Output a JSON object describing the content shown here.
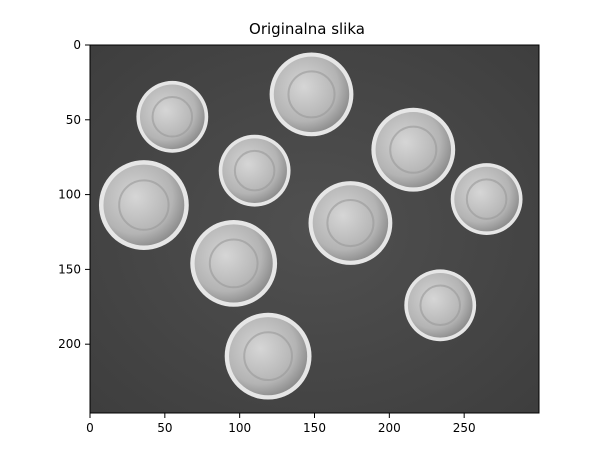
{
  "figure": {
    "title": "Originalna slika"
  },
  "image_axes": {
    "x_ticks": [
      0,
      50,
      100,
      150,
      200,
      250
    ],
    "y_ticks": [
      0,
      50,
      100,
      150,
      200
    ],
    "x_range": [
      0,
      300
    ],
    "y_range": [
      0,
      246
    ],
    "image_content": "grayscale photo of coins",
    "colors": {
      "background": "#4a4a4a",
      "coin": "#c8c8c8",
      "coin_edge": "#e6e6e6",
      "axis": "#000000"
    }
  },
  "coins": [
    {
      "name": "coin-1",
      "cx": 55,
      "cy": 48,
      "r": 24
    },
    {
      "name": "coin-2",
      "cx": 148,
      "cy": 33,
      "r": 28
    },
    {
      "name": "coin-3",
      "cx": 216,
      "cy": 70,
      "r": 28
    },
    {
      "name": "coin-4",
      "cx": 110,
      "cy": 84,
      "r": 24
    },
    {
      "name": "coin-5",
      "cx": 36,
      "cy": 107,
      "r": 30
    },
    {
      "name": "coin-6",
      "cx": 265,
      "cy": 103,
      "r": 24
    },
    {
      "name": "coin-7",
      "cx": 174,
      "cy": 119,
      "r": 28
    },
    {
      "name": "coin-8",
      "cx": 96,
      "cy": 146,
      "r": 29
    },
    {
      "name": "coin-9",
      "cx": 234,
      "cy": 174,
      "r": 24
    },
    {
      "name": "coin-10",
      "cx": 119,
      "cy": 208,
      "r": 29
    }
  ]
}
